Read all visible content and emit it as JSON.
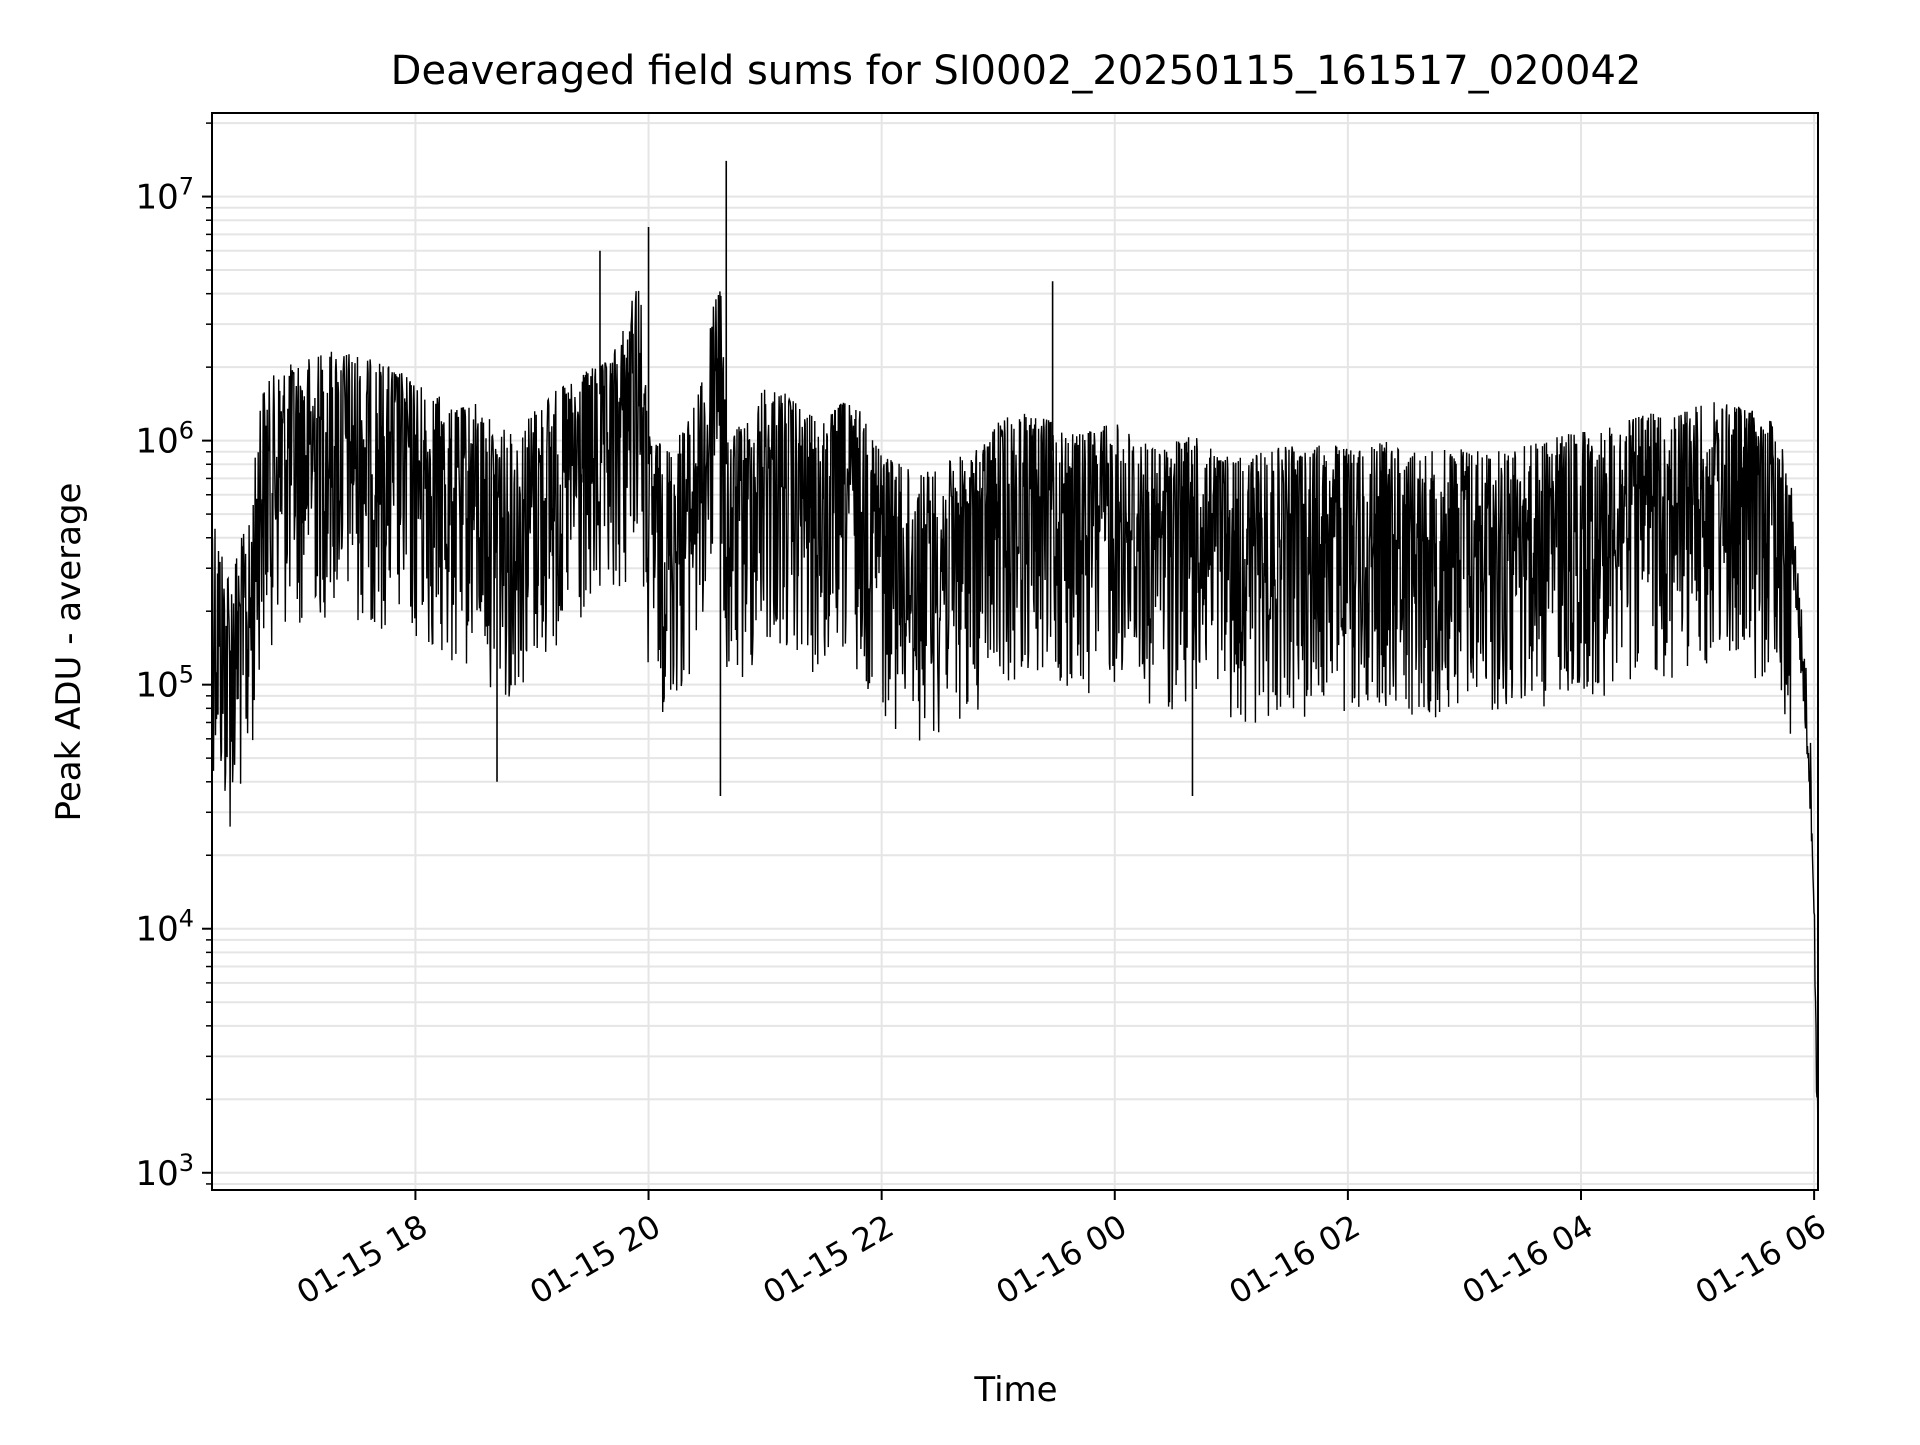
{
  "chart_data": {
    "type": "line",
    "title": "Deaveraged field sums for SI0002_20250115_161517_020042",
    "xlabel": "Time",
    "ylabel": "Peak ADU - average",
    "yscale": "log",
    "ylim": [
      850,
      22000000
    ],
    "xlim": [
      "2025-01-15 16:15:17",
      "2025-01-16 06:02:00"
    ],
    "x_ticks": [
      {
        "t": "2025-01-15 18:00",
        "label": "01-15 18"
      },
      {
        "t": "2025-01-15 20:00",
        "label": "01-15 20"
      },
      {
        "t": "2025-01-15 22:00",
        "label": "01-15 22"
      },
      {
        "t": "2025-01-16 00:00",
        "label": "01-16 00"
      },
      {
        "t": "2025-01-16 02:00",
        "label": "01-16 02"
      },
      {
        "t": "2025-01-16 04:00",
        "label": "01-16 04"
      },
      {
        "t": "2025-01-16 06:00",
        "label": "01-16 06"
      }
    ],
    "y_ticks": [
      {
        "value": 1000,
        "base": "10",
        "exp": "3"
      },
      {
        "value": 10000,
        "base": "10",
        "exp": "4"
      },
      {
        "value": 100000,
        "base": "10",
        "exp": "5"
      },
      {
        "value": 1000000,
        "base": "10",
        "exp": "6"
      },
      {
        "value": 10000000,
        "base": "10",
        "exp": "7"
      }
    ],
    "grid": true,
    "line_color": "#000000",
    "grid_color": "#e5e5e5",
    "series": [
      {
        "x": [
          "2025-01-15 16:15:17",
          "2025-01-15 16:20",
          "2025-01-15 16:25",
          "2025-01-15 16:30",
          "2025-01-15 16:35",
          "2025-01-15 16:40",
          "2025-01-15 16:50",
          "2025-01-15 17:00",
          "2025-01-15 17:10",
          "2025-01-15 17:20",
          "2025-01-15 17:30",
          "2025-01-15 17:40",
          "2025-01-15 17:50",
          "2025-01-15 18:00",
          "2025-01-15 18:10",
          "2025-01-15 18:20",
          "2025-01-15 18:30",
          "2025-01-15 18:40",
          "2025-01-15 18:50",
          "2025-01-15 19:00",
          "2025-01-15 19:10",
          "2025-01-15 19:20",
          "2025-01-15 19:30",
          "2025-01-15 19:40",
          "2025-01-15 19:50",
          "2025-01-15 19:55",
          "2025-01-15 20:00",
          "2025-01-15 20:10",
          "2025-01-15 20:20",
          "2025-01-15 20:30",
          "2025-01-15 20:36",
          "2025-01-15 20:40",
          "2025-01-15 20:50",
          "2025-01-15 21:00",
          "2025-01-15 21:10",
          "2025-01-15 21:20",
          "2025-01-15 21:30",
          "2025-01-15 21:40",
          "2025-01-15 21:50",
          "2025-01-15 22:00",
          "2025-01-15 22:10",
          "2025-01-15 22:20",
          "2025-01-15 22:30",
          "2025-01-15 22:40",
          "2025-01-15 22:50",
          "2025-01-15 23:00",
          "2025-01-15 23:10",
          "2025-01-15 23:20",
          "2025-01-15 23:30",
          "2025-01-15 23:40",
          "2025-01-15 23:50",
          "2025-01-16 00:00",
          "2025-01-16 00:10",
          "2025-01-16 00:20",
          "2025-01-16 00:30",
          "2025-01-16 00:40",
          "2025-01-16 00:50",
          "2025-01-16 01:00",
          "2025-01-16 01:10",
          "2025-01-16 01:20",
          "2025-01-16 01:30",
          "2025-01-16 01:40",
          "2025-01-16 01:50",
          "2025-01-16 02:00",
          "2025-01-16 02:10",
          "2025-01-16 02:20",
          "2025-01-16 02:30",
          "2025-01-16 02:40",
          "2025-01-16 02:50",
          "2025-01-16 03:00",
          "2025-01-16 03:10",
          "2025-01-16 03:20",
          "2025-01-16 03:30",
          "2025-01-16 03:40",
          "2025-01-16 03:50",
          "2025-01-16 04:00",
          "2025-01-16 04:10",
          "2025-01-16 04:20",
          "2025-01-16 04:30",
          "2025-01-16 04:40",
          "2025-01-16 04:50",
          "2025-01-16 05:00",
          "2025-01-16 05:10",
          "2025-01-16 05:20",
          "2025-01-16 05:30",
          "2025-01-16 05:40",
          "2025-01-16 05:48",
          "2025-01-16 05:52",
          "2025-01-16 05:55",
          "2025-01-16 05:57",
          "2025-01-16 05:59",
          "2025-01-16 06:00",
          "2025-01-16 06:01",
          "2025-01-16 06:02"
        ],
        "values": [
          450000,
          280000,
          220000,
          300000,
          350000,
          1200000,
          1500000,
          1600000,
          1700000,
          1800000,
          1700000,
          1600000,
          1500000,
          1300000,
          1200000,
          1000000,
          1100000,
          900000,
          800000,
          1000000,
          1200000,
          1300000,
          1500000,
          1600000,
          2500000,
          4000000,
          800000,
          700000,
          900000,
          1500000,
          6000000,
          800000,
          900000,
          1300000,
          1200000,
          1000000,
          900000,
          1100000,
          1000000,
          700000,
          600000,
          550000,
          600000,
          650000,
          700000,
          900000,
          1000000,
          950000,
          900000,
          800000,
          850000,
          900000,
          800000,
          700000,
          750000,
          800000,
          700000,
          650000,
          650000,
          700000,
          720000,
          700000,
          750000,
          700000,
          720000,
          750000,
          720000,
          680000,
          700000,
          720000,
          680000,
          700000,
          720000,
          750000,
          800000,
          820000,
          850000,
          900000,
          950000,
          1000000,
          1000000,
          1050000,
          1100000,
          1050000,
          1000000,
          950000,
          500000,
          200000,
          100000,
          60000,
          30000,
          10000,
          4000,
          1300
        ]
      }
    ],
    "notable_spikes": [
      {
        "x": "2025-01-15 19:35",
        "value": 6000000
      },
      {
        "x": "2025-01-15 20:00",
        "value": 7500000
      },
      {
        "x": "2025-01-15 20:40",
        "value": 14000000
      },
      {
        "x": "2025-01-15 20:37",
        "value": 35000
      },
      {
        "x": "2025-01-15 18:42",
        "value": 40000
      },
      {
        "x": "2025-01-15 23:28",
        "value": 4500000
      },
      {
        "x": "2025-01-16 00:40",
        "value": 35000
      }
    ]
  }
}
